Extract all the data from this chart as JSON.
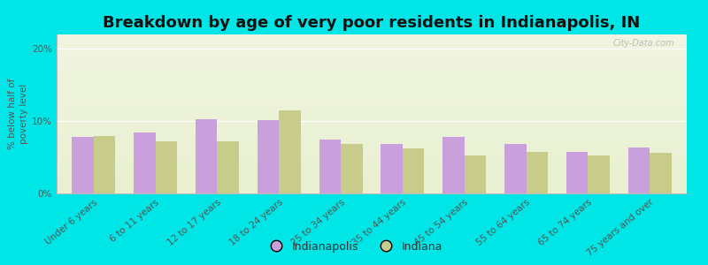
{
  "title": "Breakdown by age of very poor residents in Indianapolis, IN",
  "ylabel": "% below half of\npoverty level",
  "categories": [
    "Under 6 years",
    "6 to 11 years",
    "12 to 17 years",
    "18 to 24 years",
    "25 to 34 years",
    "35 to 44 years",
    "45 to 54 years",
    "55 to 64 years",
    "65 to 74 years",
    "75 years and over"
  ],
  "indianapolis_values": [
    7.8,
    8.4,
    10.3,
    10.2,
    7.5,
    6.8,
    7.8,
    6.8,
    5.8,
    6.3
  ],
  "indiana_values": [
    7.9,
    7.2,
    7.2,
    11.5,
    6.9,
    6.2,
    5.2,
    5.8,
    5.2,
    5.6
  ],
  "indianapolis_color": "#c9a0dc",
  "indiana_color": "#c8cc8a",
  "background_outer": "#00e5e5",
  "background_plot_top": "#f0f4e0",
  "background_plot_bottom": "#e8f0d0",
  "ylim": [
    0,
    22
  ],
  "yticks": [
    0,
    10,
    20
  ],
  "ytick_labels": [
    "0%",
    "10%",
    "20%"
  ],
  "bar_width": 0.35,
  "title_fontsize": 13,
  "label_fontsize": 7.5,
  "tick_fontsize": 7.5,
  "legend_labels": [
    "Indianapolis",
    "Indiana"
  ],
  "watermark": "City-Data.com"
}
